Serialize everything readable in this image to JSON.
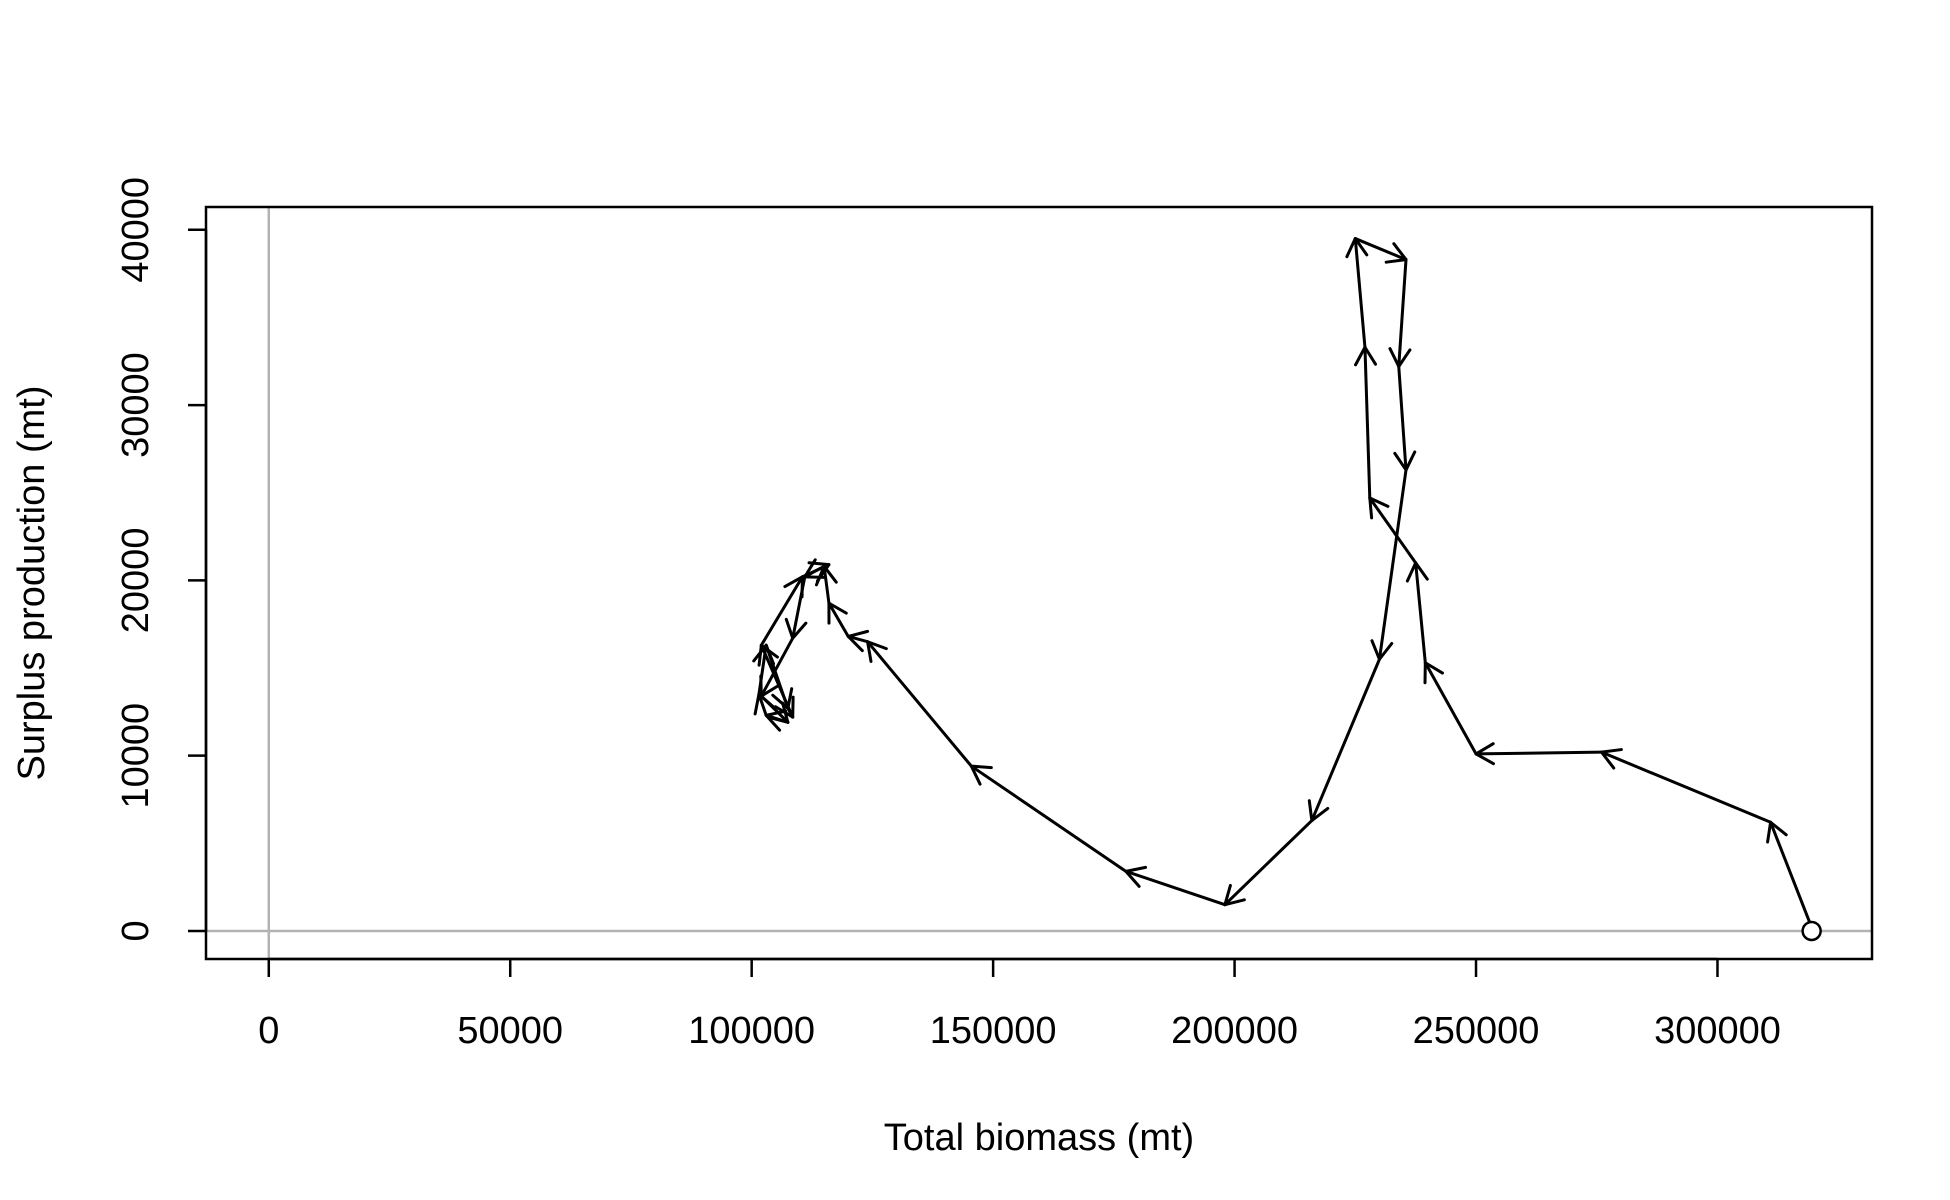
{
  "chart_data": {
    "type": "line",
    "title": "",
    "xlabel": "Total biomass (mt)",
    "ylabel": "Surplus production (mt)",
    "xlim": [
      -13000,
      332000
    ],
    "ylim": [
      -1600,
      41300
    ],
    "x_ticks": [
      0,
      50000,
      100000,
      150000,
      200000,
      250000,
      300000
    ],
    "x_tick_labels": [
      "0",
      "50000",
      "100000",
      "150000",
      "200000",
      "250000",
      "300000"
    ],
    "y_ticks": [
      0,
      10000,
      20000,
      30000,
      40000
    ],
    "y_tick_labels": [
      "0",
      "10000",
      "20000",
      "30000",
      "40000"
    ],
    "reference_lines": {
      "x": 0,
      "y": 0,
      "color": "#b3b3b3"
    },
    "line_color": "#000000",
    "start_marker": "open-circle",
    "series": [
      {
        "x": [
          319500,
          311000,
          276000,
          250000,
          239500,
          237500,
          228000,
          227000,
          225000,
          235500,
          234000,
          235500,
          230000,
          216000,
          198000,
          177500,
          145500,
          124000,
          120000,
          116000,
          115000,
          111000,
          108500,
          102000,
          107500,
          103000,
          101500,
          103000,
          107500,
          108500,
          102000,
          110500,
          116000
        ],
        "y": [
          200,
          6200,
          10200,
          10100,
          15300,
          21000,
          24700,
          33300,
          39500,
          38300,
          32200,
          26300,
          15500,
          6300,
          1500,
          3400,
          9400,
          16500,
          16800,
          18700,
          20800,
          20200,
          16700,
          13400,
          11900,
          12300,
          13500,
          16300,
          12700,
          12200,
          16300,
          20200,
          20900
        ]
      }
    ]
  }
}
